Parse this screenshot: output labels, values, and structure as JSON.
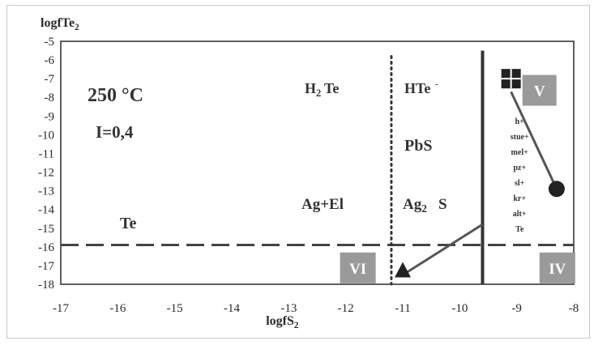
{
  "chart_data": {
    "type": "diagram",
    "ylabel_parts": [
      "logfTe",
      "2"
    ],
    "xlabel_parts": [
      "logfS",
      "2"
    ],
    "xlim": [
      -17,
      -8
    ],
    "ylim": [
      -18,
      -5
    ],
    "x_ticks": [
      "-17",
      "-16",
      "-15",
      "-14",
      "-13",
      "-12",
      "-11",
      "-10",
      "-9",
      "-8"
    ],
    "y_ticks": [
      "-5",
      "-6",
      "-7",
      "-8",
      "-9",
      "-10",
      "-11",
      "-12",
      "-13",
      "-14",
      "-15",
      "-16",
      "-17",
      "-18"
    ],
    "temperature": "250 °C",
    "ionic_strength": "I=0,4",
    "region_labels": {
      "h2te": "H2Te",
      "hte": "HTe-",
      "pbs": "PbS",
      "agel": "Ag+El",
      "ag2s": "Ag2S",
      "te": "Te"
    },
    "mineral_list": [
      "h+",
      "stue+",
      "mel+",
      "pz+",
      "sl+",
      "kr+",
      "alt+",
      "Te"
    ],
    "boxes": [
      "V",
      "IV",
      "VI"
    ],
    "lines": {
      "dashed_horizontal_y": -15.9,
      "dotted_vertical_x": -11.2,
      "solid_vertical_x": -9.6
    },
    "arrows": [
      {
        "from": [
          -9.1,
          -7.7
        ],
        "to": [
          -8.3,
          -12.9
        ]
      },
      {
        "from": [
          -9.6,
          -14.8
        ],
        "to": [
          -11.0,
          -17.5
        ]
      }
    ],
    "colors": {
      "box": "#9a9a9a",
      "line": "#333333",
      "arrow": "#555555"
    }
  }
}
